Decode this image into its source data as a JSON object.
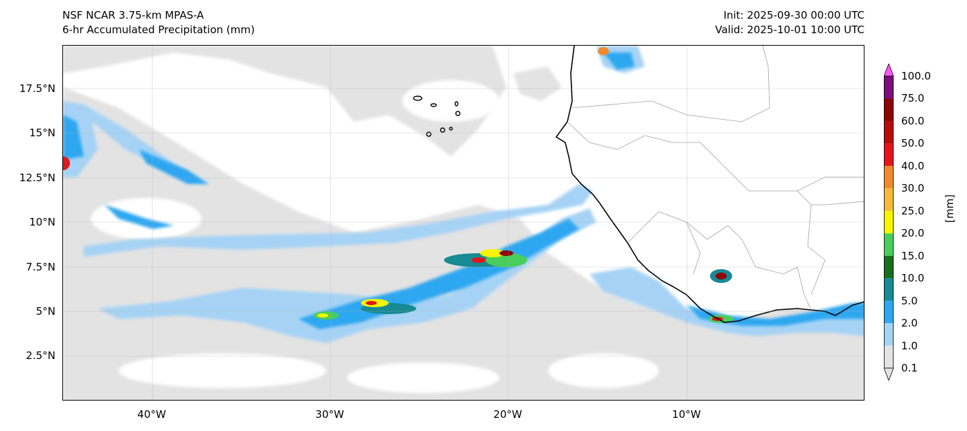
{
  "header": {
    "title_line1": "NSF NCAR 3.75-km MPAS-A",
    "title_line2": "6-hr Accumulated Precipitation (mm)",
    "init": "Init: 2025-09-30 00:00 UTC",
    "valid": "Valid: 2025-10-01 10:00 UTC"
  },
  "map": {
    "lat_labels": [
      "17.5°N",
      "15°N",
      "12.5°N",
      "10°N",
      "7.5°N",
      "5°N",
      "2.5°N"
    ],
    "lon_labels": [
      "40°W",
      "30°W",
      "20°W",
      "10°W"
    ],
    "extent": {
      "lon_min": -45.5,
      "lon_max": -0.5,
      "lat_min": 0,
      "lat_max": 20
    },
    "land_color": "#ffffff",
    "coast_color": "#000000",
    "border_color": "#a0a0a0"
  },
  "colorbar": {
    "unit_label": "[mm]",
    "levels": [
      "0.1",
      "1.0",
      "2.0",
      "5.0",
      "10.0",
      "15.0",
      "20.0",
      "25.0",
      "30.0",
      "40.0",
      "50.0",
      "60.0",
      "75.0",
      "100.0"
    ],
    "colors": [
      "#e3e3e3",
      "#a6d3f5",
      "#2fa7f1",
      "#178a93",
      "#19701a",
      "#48cf5b",
      "#f5f500",
      "#f6b93b",
      "#ef8b2d",
      "#e2161c",
      "#b80c0c",
      "#8c0404",
      "#7b0f7b",
      "#ff55ff"
    ]
  }
}
